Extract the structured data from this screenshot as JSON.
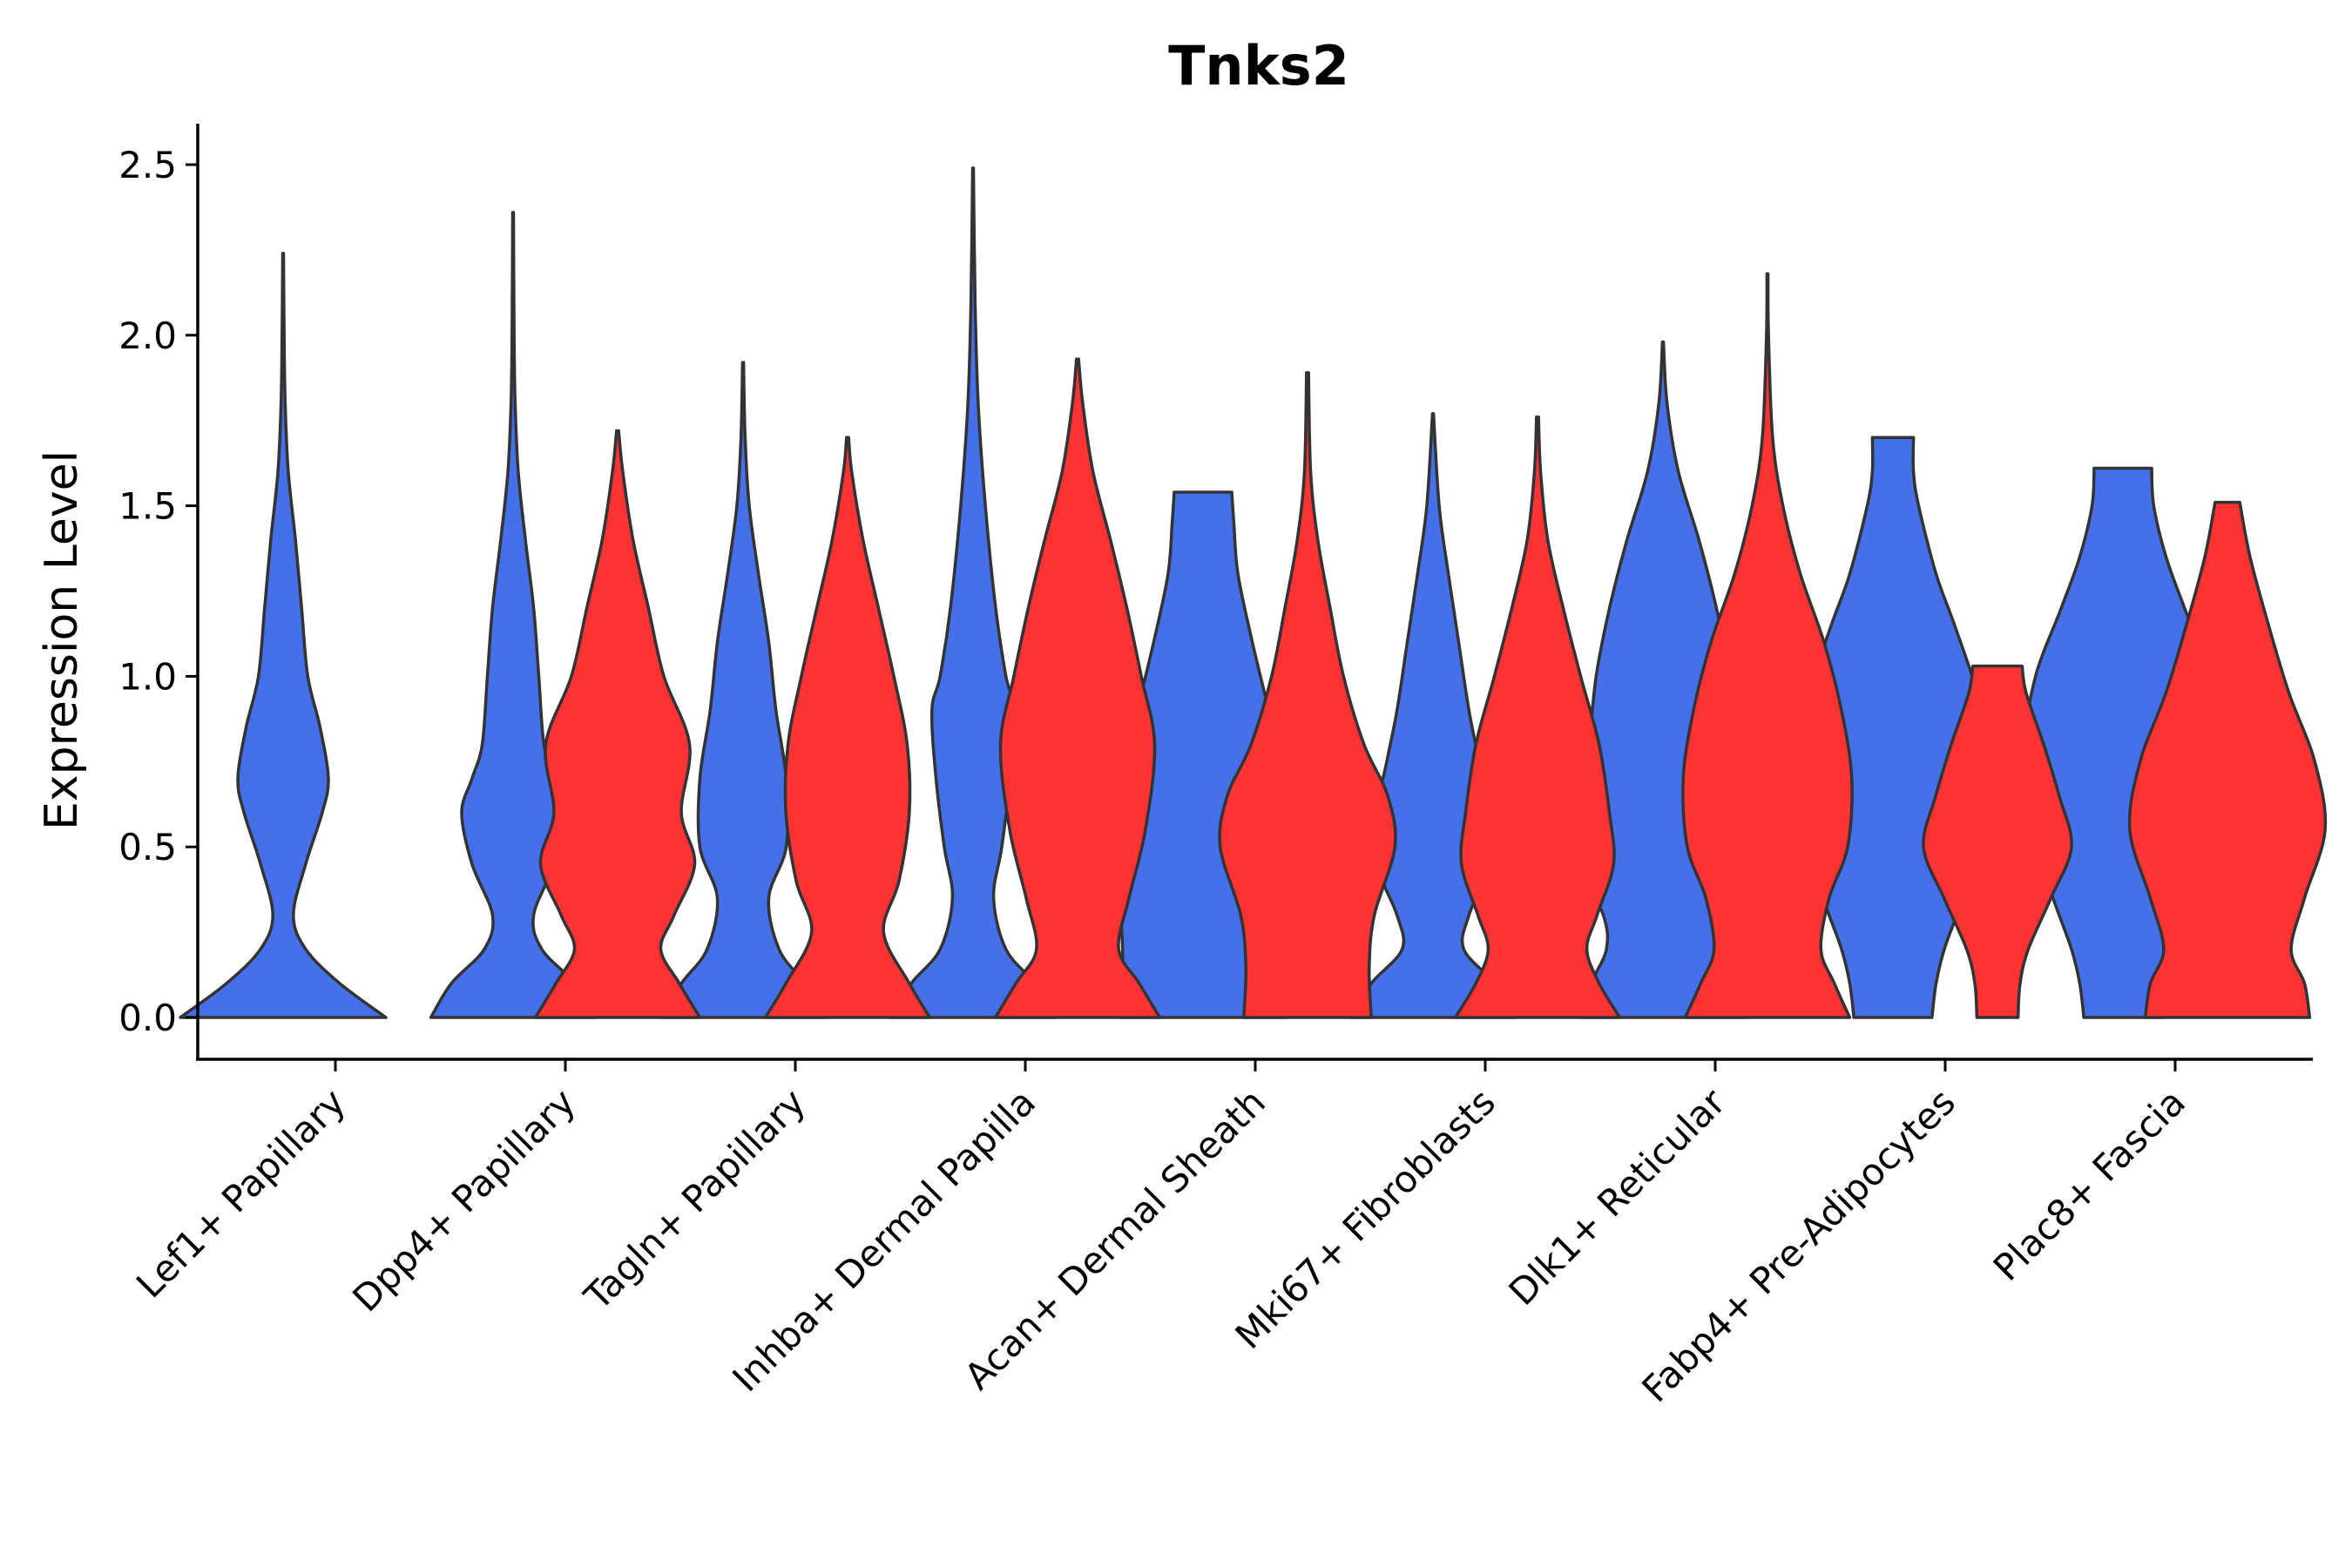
{
  "chart_data": {
    "type": "violin",
    "title": "Tnks2",
    "xlabel": "",
    "ylabel": "Expression Level",
    "ylim": [
      -0.125,
      2.625
    ],
    "yticks": [
      0.0,
      0.5,
      1.0,
      1.5,
      2.0,
      2.5
    ],
    "ytick_labels": [
      "0.0",
      "0.5",
      "1.0",
      "1.5",
      "2.0",
      "2.5"
    ],
    "categories": [
      "Lef1+ Papillary",
      "Dpp4+ Papillary",
      "Tagln+ Papillary",
      "Inhba+ Dermal Papilla",
      "Acan+ Dermal Sheath",
      "Mki67+ Fibroblasts",
      "Dlk1+ Reticular",
      "Fabp4+ Pre-Adipocytes",
      "Plac8+ Fascia"
    ],
    "colors": {
      "group1": "#4570EA",
      "group2": "#FF3333"
    },
    "series": [
      {
        "name": "group1",
        "color": "#4570EA",
        "violins": [
          {
            "category": 0,
            "max": 2.24,
            "profile": [
              [
                0,
                1
              ],
              [
                0.1,
                0.55
              ],
              [
                0.2,
                0.22
              ],
              [
                0.3,
                0.1
              ],
              [
                0.45,
                0.22
              ],
              [
                0.6,
                0.38
              ],
              [
                0.7,
                0.44
              ],
              [
                0.85,
                0.36
              ],
              [
                1.0,
                0.24
              ],
              [
                1.2,
                0.18
              ],
              [
                1.4,
                0.12
              ],
              [
                1.6,
                0.05
              ],
              [
                1.8,
                0.02
              ],
              [
                2.0,
                0.01
              ],
              [
                2.24,
                0.004
              ]
            ]
          },
          {
            "category": 1,
            "max": 2.36,
            "profile": [
              [
                0,
                0.8
              ],
              [
                0.1,
                0.6
              ],
              [
                0.2,
                0.28
              ],
              [
                0.3,
                0.2
              ],
              [
                0.45,
                0.4
              ],
              [
                0.6,
                0.5
              ],
              [
                0.7,
                0.4
              ],
              [
                0.8,
                0.3
              ],
              [
                1.0,
                0.25
              ],
              [
                1.2,
                0.2
              ],
              [
                1.4,
                0.12
              ],
              [
                1.6,
                0.05
              ],
              [
                1.8,
                0.02
              ],
              [
                2.0,
                0.01
              ],
              [
                2.36,
                0.004
              ]
            ]
          },
          {
            "category": 2,
            "max": 1.92,
            "profile": [
              [
                0,
                0.8
              ],
              [
                0.1,
                0.6
              ],
              [
                0.2,
                0.35
              ],
              [
                0.35,
                0.25
              ],
              [
                0.5,
                0.42
              ],
              [
                0.7,
                0.42
              ],
              [
                0.9,
                0.32
              ],
              [
                1.1,
                0.25
              ],
              [
                1.3,
                0.15
              ],
              [
                1.5,
                0.06
              ],
              [
                1.7,
                0.02
              ],
              [
                1.92,
                0.005
              ]
            ]
          },
          {
            "category": 3,
            "max": 2.49,
            "profile": [
              [
                0,
                0.8
              ],
              [
                0.1,
                0.6
              ],
              [
                0.2,
                0.32
              ],
              [
                0.35,
                0.2
              ],
              [
                0.5,
                0.28
              ],
              [
                0.7,
                0.36
              ],
              [
                0.9,
                0.4
              ],
              [
                1.0,
                0.32
              ],
              [
                1.2,
                0.22
              ],
              [
                1.5,
                0.12
              ],
              [
                1.8,
                0.05
              ],
              [
                2.1,
                0.02
              ],
              [
                2.49,
                0.004
              ]
            ]
          },
          {
            "category": 4,
            "max": 1.54,
            "profile": [
              [
                0,
                0.8
              ],
              [
                0.15,
                0.78
              ],
              [
                0.3,
                0.8
              ],
              [
                0.5,
                0.86
              ],
              [
                0.7,
                0.8
              ],
              [
                0.9,
                0.64
              ],
              [
                1.1,
                0.48
              ],
              [
                1.3,
                0.34
              ],
              [
                1.45,
                0.3
              ],
              [
                1.54,
                0.28
              ]
            ]
          },
          {
            "category": 5,
            "max": 1.77,
            "profile": [
              [
                0,
                0.8
              ],
              [
                0.1,
                0.6
              ],
              [
                0.2,
                0.3
              ],
              [
                0.3,
                0.35
              ],
              [
                0.45,
                0.55
              ],
              [
                0.6,
                0.55
              ],
              [
                0.75,
                0.45
              ],
              [
                0.9,
                0.35
              ],
              [
                1.1,
                0.25
              ],
              [
                1.3,
                0.15
              ],
              [
                1.5,
                0.06
              ],
              [
                1.77,
                0.005
              ]
            ]
          },
          {
            "category": 6,
            "max": 1.98,
            "profile": [
              [
                0,
                0.8
              ],
              [
                0.1,
                0.7
              ],
              [
                0.2,
                0.55
              ],
              [
                0.3,
                0.58
              ],
              [
                0.45,
                0.82
              ],
              [
                0.6,
                0.82
              ],
              [
                0.8,
                0.72
              ],
              [
                1.0,
                0.65
              ],
              [
                1.2,
                0.52
              ],
              [
                1.4,
                0.35
              ],
              [
                1.6,
                0.15
              ],
              [
                1.8,
                0.04
              ],
              [
                1.98,
                0.005
              ]
            ]
          },
          {
            "category": 7,
            "max": 1.7,
            "profile": [
              [
                0,
                0.38
              ],
              [
                0.1,
                0.42
              ],
              [
                0.2,
                0.5
              ],
              [
                0.35,
                0.68
              ],
              [
                0.55,
                0.88
              ],
              [
                0.75,
                0.95
              ],
              [
                0.95,
                0.82
              ],
              [
                1.15,
                0.6
              ],
              [
                1.3,
                0.42
              ],
              [
                1.5,
                0.25
              ],
              [
                1.6,
                0.2
              ],
              [
                1.7,
                0.2
              ]
            ]
          },
          {
            "category": 8,
            "max": 1.61,
            "profile": [
              [
                0,
                0.38
              ],
              [
                0.1,
                0.42
              ],
              [
                0.2,
                0.5
              ],
              [
                0.35,
                0.68
              ],
              [
                0.55,
                0.9
              ],
              [
                0.8,
                0.95
              ],
              [
                1.0,
                0.85
              ],
              [
                1.2,
                0.6
              ],
              [
                1.35,
                0.42
              ],
              [
                1.5,
                0.3
              ],
              [
                1.61,
                0.28
              ]
            ]
          }
        ]
      },
      {
        "name": "group2",
        "color": "#FF3333",
        "violins": [
          {
            "category": 1,
            "max": 1.72,
            "profile": [
              [
                0,
                0.8
              ],
              [
                0.1,
                0.6
              ],
              [
                0.2,
                0.42
              ],
              [
                0.3,
                0.55
              ],
              [
                0.45,
                0.75
              ],
              [
                0.6,
                0.62
              ],
              [
                0.8,
                0.7
              ],
              [
                1.0,
                0.45
              ],
              [
                1.2,
                0.3
              ],
              [
                1.4,
                0.15
              ],
              [
                1.6,
                0.05
              ],
              [
                1.72,
                0.01
              ]
            ]
          },
          {
            "category": 2,
            "max": 1.7,
            "profile": [
              [
                0,
                0.8
              ],
              [
                0.1,
                0.6
              ],
              [
                0.25,
                0.35
              ],
              [
                0.4,
                0.5
              ],
              [
                0.6,
                0.6
              ],
              [
                0.8,
                0.58
              ],
              [
                1.0,
                0.45
              ],
              [
                1.2,
                0.3
              ],
              [
                1.4,
                0.15
              ],
              [
                1.6,
                0.04
              ],
              [
                1.7,
                0.01
              ]
            ]
          },
          {
            "category": 3,
            "max": 1.93,
            "profile": [
              [
                0,
                0.8
              ],
              [
                0.1,
                0.6
              ],
              [
                0.2,
                0.4
              ],
              [
                0.35,
                0.5
              ],
              [
                0.55,
                0.66
              ],
              [
                0.8,
                0.75
              ],
              [
                1.0,
                0.62
              ],
              [
                1.2,
                0.48
              ],
              [
                1.4,
                0.32
              ],
              [
                1.6,
                0.15
              ],
              [
                1.8,
                0.05
              ],
              [
                1.93,
                0.01
              ]
            ]
          },
          {
            "category": 4,
            "max": 1.89,
            "profile": [
              [
                0,
                0.62
              ],
              [
                0.15,
                0.6
              ],
              [
                0.3,
                0.65
              ],
              [
                0.5,
                0.85
              ],
              [
                0.65,
                0.78
              ],
              [
                0.8,
                0.55
              ],
              [
                1.0,
                0.35
              ],
              [
                1.2,
                0.22
              ],
              [
                1.4,
                0.1
              ],
              [
                1.6,
                0.03
              ],
              [
                1.89,
                0.01
              ]
            ]
          },
          {
            "category": 5,
            "max": 1.76,
            "profile": [
              [
                0,
                0.8
              ],
              [
                0.1,
                0.6
              ],
              [
                0.2,
                0.48
              ],
              [
                0.3,
                0.58
              ],
              [
                0.45,
                0.74
              ],
              [
                0.6,
                0.7
              ],
              [
                0.8,
                0.6
              ],
              [
                1.0,
                0.42
              ],
              [
                1.2,
                0.25
              ],
              [
                1.4,
                0.1
              ],
              [
                1.6,
                0.03
              ],
              [
                1.76,
                0.01
              ]
            ]
          },
          {
            "category": 6,
            "max": 2.18,
            "profile": [
              [
                0,
                0.8
              ],
              [
                0.1,
                0.65
              ],
              [
                0.2,
                0.52
              ],
              [
                0.35,
                0.6
              ],
              [
                0.5,
                0.78
              ],
              [
                0.7,
                0.82
              ],
              [
                0.9,
                0.72
              ],
              [
                1.1,
                0.55
              ],
              [
                1.3,
                0.32
              ],
              [
                1.5,
                0.15
              ],
              [
                1.7,
                0.05
              ],
              [
                2.0,
                0.01
              ],
              [
                2.18,
                0.005
              ]
            ]
          },
          {
            "category": 7,
            "max": 1.03,
            "profile": [
              [
                0,
                0.2
              ],
              [
                0.1,
                0.22
              ],
              [
                0.2,
                0.3
              ],
              [
                0.35,
                0.52
              ],
              [
                0.5,
                0.72
              ],
              [
                0.65,
                0.6
              ],
              [
                0.8,
                0.45
              ],
              [
                0.95,
                0.28
              ],
              [
                1.03,
                0.24
              ]
            ]
          },
          {
            "category": 8,
            "max": 1.51,
            "profile": [
              [
                0,
                0.8
              ],
              [
                0.1,
                0.75
              ],
              [
                0.2,
                0.62
              ],
              [
                0.35,
                0.75
              ],
              [
                0.55,
                0.95
              ],
              [
                0.75,
                0.85
              ],
              [
                0.95,
                0.6
              ],
              [
                1.15,
                0.4
              ],
              [
                1.35,
                0.22
              ],
              [
                1.51,
                0.12
              ]
            ]
          }
        ]
      }
    ]
  }
}
